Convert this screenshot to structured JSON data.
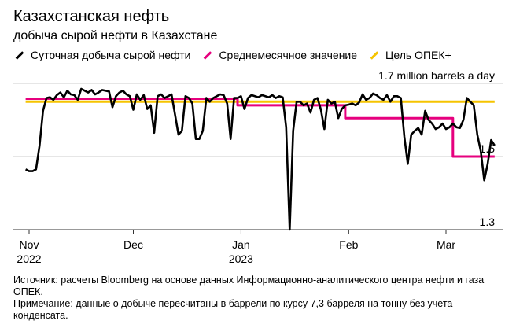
{
  "header": {
    "title": "Казахстанская нефть",
    "subtitle": "добыча сырой нефти в Казахстане"
  },
  "legend": [
    {
      "label": "Суточная добыча сырой нефти",
      "color": "#000000"
    },
    {
      "label": "Среднемесячное значение",
      "color": "#e6007e"
    },
    {
      "label": "Цель ОПЕК+",
      "color": "#f5c400"
    }
  ],
  "footnotes": {
    "source": "Источник: расчеты Bloomberg на основе данных Информационно-аналитического центра нефти и газа ОПЕК.",
    "note": "Примечание: данные о добыче пересчитаны в баррели по курсу 7,3 барреля на тонну без учета конденсата."
  },
  "chart_data": {
    "type": "line",
    "title": "Казахстанская нефть",
    "subtitle": "добыча сырой нефти в Казахстане",
    "unit": "million barrels a day",
    "ylim": [
      1.3,
      1.7
    ],
    "y_ticks": [
      {
        "value": 1.7,
        "label": "1.7 million barrels a day"
      },
      {
        "value": 1.5,
        "label": "1.5"
      },
      {
        "value": 1.3,
        "label": "1.3"
      }
    ],
    "xlim": [
      "2022-10-31",
      "2023-03-16"
    ],
    "x_ticks": [
      {
        "date": "2022-11-01",
        "label": "Nov",
        "sublabel": "2022"
      },
      {
        "date": "2022-12-01",
        "label": "Dec",
        "sublabel": ""
      },
      {
        "date": "2023-01-01",
        "label": "Jan",
        "sublabel": "2023"
      },
      {
        "date": "2023-02-01",
        "label": "Feb",
        "sublabel": ""
      },
      {
        "date": "2023-03-01",
        "label": "Mar",
        "sublabel": ""
      }
    ],
    "grid": true,
    "series": [
      {
        "name": "Суточная добыча сырой нефти",
        "color": "#000000",
        "points": [
          [
            "2022-10-31",
            1.465
          ],
          [
            "2022-11-01",
            1.46
          ],
          [
            "2022-11-02",
            1.46
          ],
          [
            "2022-11-03",
            1.465
          ],
          [
            "2022-11-04",
            1.53
          ],
          [
            "2022-11-05",
            1.625
          ],
          [
            "2022-11-06",
            1.66
          ],
          [
            "2022-11-07",
            1.662
          ],
          [
            "2022-11-08",
            1.655
          ],
          [
            "2022-11-09",
            1.668
          ],
          [
            "2022-11-10",
            1.675
          ],
          [
            "2022-11-11",
            1.662
          ],
          [
            "2022-11-12",
            1.68
          ],
          [
            "2022-11-13",
            1.67
          ],
          [
            "2022-11-14",
            1.668
          ],
          [
            "2022-11-15",
            1.655
          ],
          [
            "2022-11-16",
            1.685
          ],
          [
            "2022-11-17",
            1.68
          ],
          [
            "2022-11-18",
            1.675
          ],
          [
            "2022-11-19",
            1.682
          ],
          [
            "2022-11-20",
            1.67
          ],
          [
            "2022-11-21",
            1.675
          ],
          [
            "2022-11-22",
            1.682
          ],
          [
            "2022-11-23",
            1.68
          ],
          [
            "2022-11-24",
            1.678
          ],
          [
            "2022-11-25",
            1.635
          ],
          [
            "2022-11-26",
            1.665
          ],
          [
            "2022-11-27",
            1.675
          ],
          [
            "2022-11-28",
            1.68
          ],
          [
            "2022-11-29",
            1.67
          ],
          [
            "2022-11-30",
            1.665
          ],
          [
            "2022-12-01",
            1.628
          ],
          [
            "2022-12-02",
            1.67
          ],
          [
            "2022-12-03",
            1.655
          ],
          [
            "2022-12-04",
            1.668
          ],
          [
            "2022-12-05",
            1.63
          ],
          [
            "2022-12-06",
            1.64
          ],
          [
            "2022-12-07",
            1.565
          ],
          [
            "2022-12-08",
            1.665
          ],
          [
            "2022-12-09",
            1.67
          ],
          [
            "2022-12-10",
            1.66
          ],
          [
            "2022-12-11",
            1.665
          ],
          [
            "2022-12-12",
            1.67
          ],
          [
            "2022-12-13",
            1.615
          ],
          [
            "2022-12-14",
            1.56
          ],
          [
            "2022-12-15",
            1.57
          ],
          [
            "2022-12-16",
            1.665
          ],
          [
            "2022-12-17",
            1.66
          ],
          [
            "2022-12-18",
            1.645
          ],
          [
            "2022-12-19",
            1.548
          ],
          [
            "2022-12-20",
            1.548
          ],
          [
            "2022-12-21",
            1.57
          ],
          [
            "2022-12-22",
            1.66
          ],
          [
            "2022-12-23",
            1.65
          ],
          [
            "2022-12-24",
            1.66
          ],
          [
            "2022-12-25",
            1.665
          ],
          [
            "2022-12-26",
            1.67
          ],
          [
            "2022-12-27",
            1.668
          ],
          [
            "2022-12-28",
            1.645
          ],
          [
            "2022-12-29",
            1.548
          ],
          [
            "2022-12-30",
            1.66
          ],
          [
            "2022-12-31",
            1.66
          ],
          [
            "2023-01-01",
            1.665
          ],
          [
            "2023-01-02",
            1.63
          ],
          [
            "2023-01-03",
            1.66
          ],
          [
            "2023-01-04",
            1.668
          ],
          [
            "2023-01-05",
            1.665
          ],
          [
            "2023-01-06",
            1.662
          ],
          [
            "2023-01-07",
            1.668
          ],
          [
            "2023-01-08",
            1.665
          ],
          [
            "2023-01-09",
            1.662
          ],
          [
            "2023-01-10",
            1.668
          ],
          [
            "2023-01-11",
            1.66
          ],
          [
            "2023-01-12",
            1.665
          ],
          [
            "2023-01-13",
            1.662
          ],
          [
            "2023-01-14",
            1.58
          ],
          [
            "2023-01-15",
            1.3
          ],
          [
            "2023-01-16",
            1.57
          ],
          [
            "2023-01-17",
            1.65
          ],
          [
            "2023-01-18",
            1.65
          ],
          [
            "2023-01-19",
            1.64
          ],
          [
            "2023-01-20",
            1.645
          ],
          [
            "2023-01-21",
            1.62
          ],
          [
            "2023-01-22",
            1.655
          ],
          [
            "2023-01-23",
            1.66
          ],
          [
            "2023-01-24",
            1.628
          ],
          [
            "2023-01-25",
            1.575
          ],
          [
            "2023-01-26",
            1.655
          ],
          [
            "2023-01-27",
            1.645
          ],
          [
            "2023-01-28",
            1.65
          ],
          [
            "2023-01-29",
            1.605
          ],
          [
            "2023-01-30",
            1.63
          ],
          [
            "2023-01-31",
            1.64
          ],
          [
            "2023-02-01",
            1.642
          ],
          [
            "2023-02-02",
            1.645
          ],
          [
            "2023-02-03",
            1.64
          ],
          [
            "2023-02-04",
            1.648
          ],
          [
            "2023-02-05",
            1.67
          ],
          [
            "2023-02-06",
            1.655
          ],
          [
            "2023-02-07",
            1.66
          ],
          [
            "2023-02-08",
            1.672
          ],
          [
            "2023-02-09",
            1.668
          ],
          [
            "2023-02-10",
            1.66
          ],
          [
            "2023-02-11",
            1.655
          ],
          [
            "2023-02-12",
            1.668
          ],
          [
            "2023-02-13",
            1.65
          ],
          [
            "2023-02-14",
            1.665
          ],
          [
            "2023-02-15",
            1.665
          ],
          [
            "2023-02-16",
            1.66
          ],
          [
            "2023-02-17",
            1.555
          ],
          [
            "2023-02-18",
            1.48
          ],
          [
            "2023-02-19",
            1.56
          ],
          [
            "2023-02-20",
            1.57
          ],
          [
            "2023-02-21",
            1.578
          ],
          [
            "2023-02-22",
            1.56
          ],
          [
            "2023-02-23",
            1.625
          ],
          [
            "2023-02-24",
            1.6
          ],
          [
            "2023-02-25",
            1.59
          ],
          [
            "2023-02-26",
            1.575
          ],
          [
            "2023-02-27",
            1.58
          ],
          [
            "2023-02-28",
            1.59
          ],
          [
            "2023-03-01",
            1.575
          ],
          [
            "2023-03-02",
            1.58
          ],
          [
            "2023-03-03",
            1.59
          ],
          [
            "2023-03-04",
            1.58
          ],
          [
            "2023-03-05",
            1.578
          ],
          [
            "2023-03-06",
            1.6
          ],
          [
            "2023-03-07",
            1.66
          ],
          [
            "2023-03-08",
            1.65
          ],
          [
            "2023-03-09",
            1.64
          ],
          [
            "2023-03-10",
            1.56
          ],
          [
            "2023-03-11",
            1.515
          ],
          [
            "2023-03-12",
            1.435
          ],
          [
            "2023-03-13",
            1.48
          ],
          [
            "2023-03-14",
            1.545
          ],
          [
            "2023-03-15",
            1.53
          ]
        ]
      },
      {
        "name": "Среднемесячное значение",
        "color": "#e6007e",
        "points": [
          [
            "2022-10-31",
            1.658
          ],
          [
            "2022-12-31",
            1.658
          ],
          [
            "2022-12-31",
            1.64
          ],
          [
            "2023-01-31",
            1.64
          ],
          [
            "2023-01-31",
            1.605
          ],
          [
            "2023-03-03",
            1.605
          ],
          [
            "2023-03-03",
            1.5
          ],
          [
            "2023-03-15",
            1.5
          ]
        ]
      },
      {
        "name": "Цель ОПЕК+",
        "color": "#f5c400",
        "points": [
          [
            "2022-10-31",
            1.65
          ],
          [
            "2023-03-15",
            1.65
          ]
        ]
      }
    ]
  }
}
